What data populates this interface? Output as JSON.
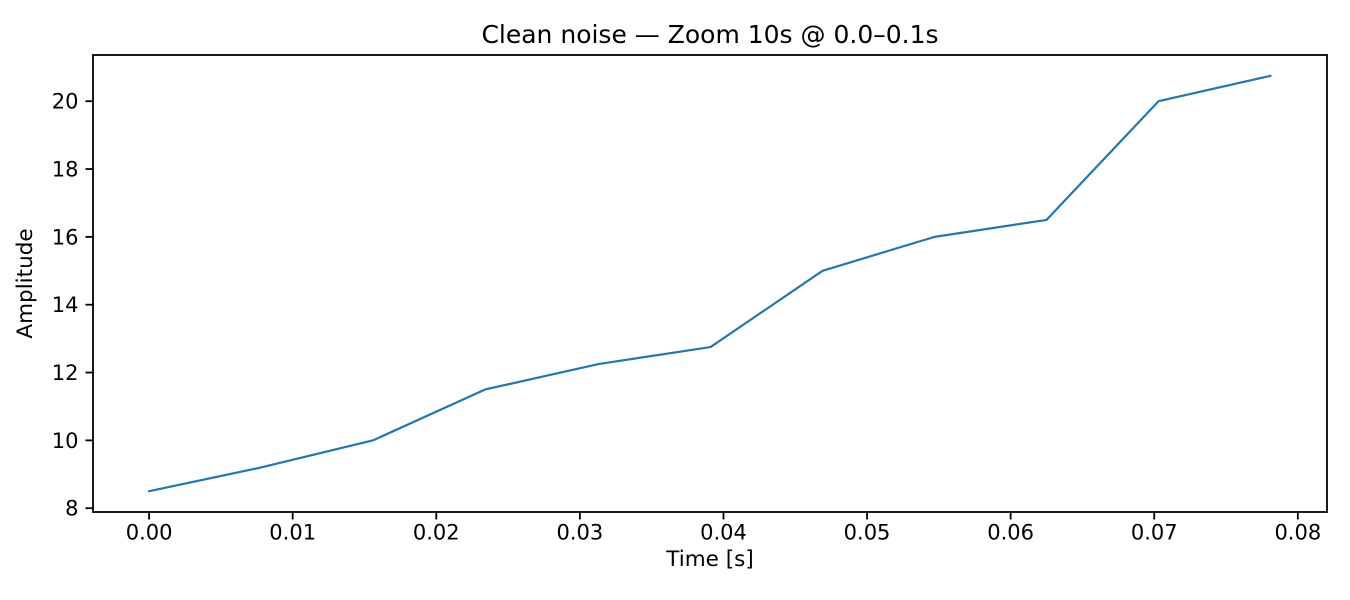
{
  "figure": {
    "background": "#ffffff",
    "axis_color": "#000000"
  },
  "chart_data": {
    "type": "line",
    "title": "Clean noise — Zoom 10s @ 0.0–0.1s",
    "xlabel": "Time [s]",
    "ylabel": "Amplitude",
    "x": [
      0.0,
      0.0078,
      0.0156,
      0.0234,
      0.0313,
      0.0391,
      0.0469,
      0.0547,
      0.0625,
      0.0703,
      0.0781
    ],
    "y": [
      8.5,
      9.2,
      10.0,
      11.5,
      12.25,
      12.75,
      15.0,
      16.0,
      16.5,
      20.0,
      20.75
    ],
    "line_color": "#1f77b4",
    "xlim": [
      -0.00390625,
      0.08203125
    ],
    "ylim": [
      7.8875,
      21.3625
    ],
    "x_ticks": [
      0.0,
      0.01,
      0.02,
      0.03,
      0.04,
      0.05,
      0.06,
      0.07,
      0.08
    ],
    "x_tick_labels": [
      "0.00",
      "0.01",
      "0.02",
      "0.03",
      "0.04",
      "0.05",
      "0.06",
      "0.07",
      "0.08"
    ],
    "y_ticks": [
      8,
      10,
      12,
      14,
      16,
      18,
      20
    ],
    "y_tick_labels": [
      "8",
      "10",
      "12",
      "14",
      "16",
      "18",
      "20"
    ],
    "grid": false,
    "legend": null
  }
}
